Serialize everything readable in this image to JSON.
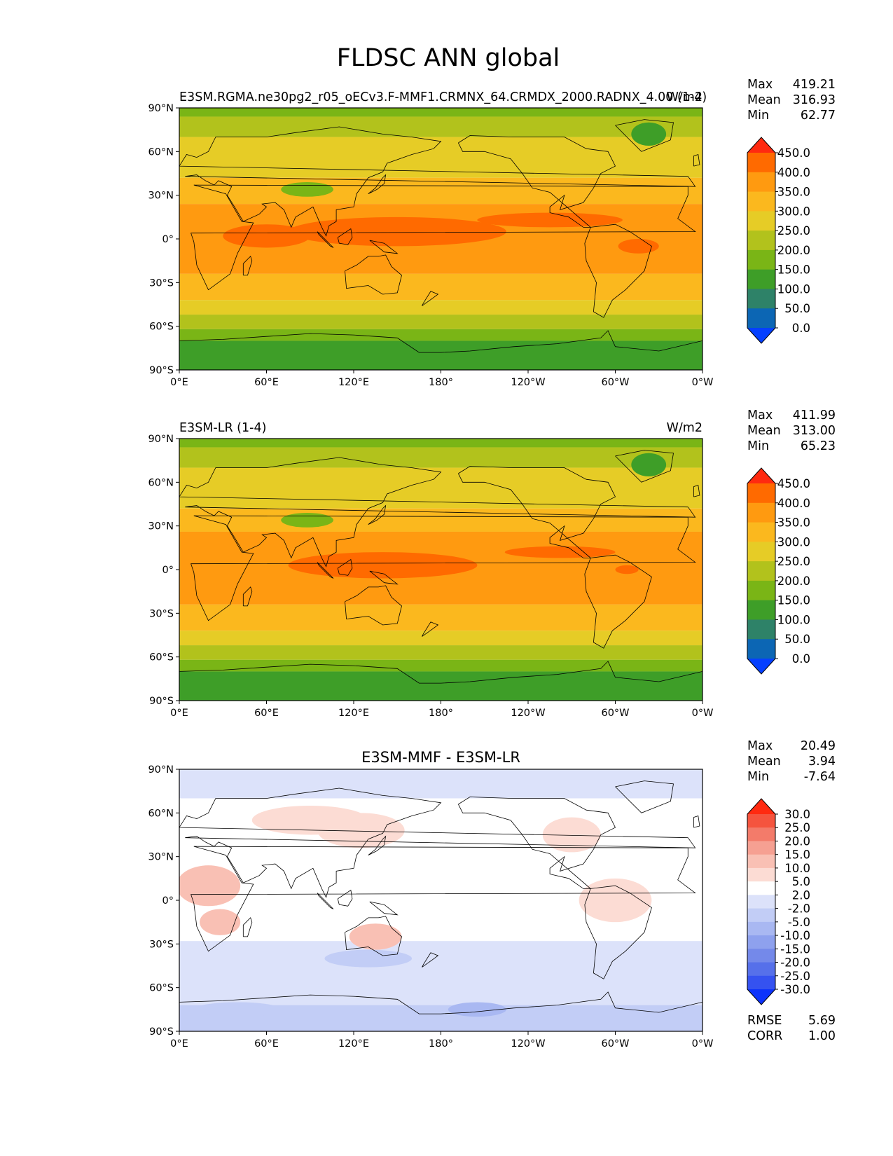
{
  "figure_title": "FLDSC ANN global",
  "chart_data": [
    {
      "type": "contour_map",
      "title_left": "E3SM.RGMA.ne30pg2_r05_oECv3.F-MMF1.CRMNX_64.CRMDX_2000.RADNX_4.00 (1-4)",
      "title_center": "",
      "units": "W/m2",
      "stats": [
        {
          "label": "Max",
          "value": "419.21"
        },
        {
          "label": "Mean",
          "value": "316.93"
        },
        {
          "label": "Min",
          "value": "62.77"
        }
      ],
      "extra_stats": [],
      "levels": [
        "450.0",
        "400.0",
        "350.0",
        "300.0",
        "250.0",
        "200.0",
        "150.0",
        "100.0",
        "50.0",
        "0.0"
      ],
      "colors": [
        "#ff2a10",
        "#ff6a00",
        "#ff9a10",
        "#fbb81e",
        "#e6cc26",
        "#b2c21c",
        "#7ab516",
        "#3e9e28",
        "#2e8268",
        "#0c66b4",
        "#0540ff"
      ],
      "xticks": [
        "0°E",
        "60°E",
        "120°E",
        "180°",
        "120°W",
        "60°W",
        "0°W"
      ],
      "yticks": [
        "90°N",
        "60°N",
        "30°N",
        "0°",
        "30°S",
        "60°S",
        "90°S"
      ],
      "lat_bands": [
        {
          "lat_top": 90,
          "lat_bottom": 84,
          "value": 160
        },
        {
          "lat_top": 84,
          "lat_bottom": 70,
          "value": 220
        },
        {
          "lat_top": 70,
          "lat_bottom": 42,
          "value": 270
        },
        {
          "lat_top": 42,
          "lat_bottom": 24,
          "value": 320
        },
        {
          "lat_top": 24,
          "lat_bottom": -24,
          "value": 370
        },
        {
          "lat_top": -24,
          "lat_bottom": -42,
          "value": 320
        },
        {
          "lat_top": -42,
          "lat_bottom": -52,
          "value": 275
        },
        {
          "lat_top": -52,
          "lat_bottom": -62,
          "value": 225
        },
        {
          "lat_top": -62,
          "lat_bottom": -70,
          "value": 170
        },
        {
          "lat_top": -70,
          "lat_bottom": -90,
          "value": 115
        }
      ],
      "features": [
        {
          "lon": 150,
          "lat": 5,
          "rx": 75,
          "ry": 10,
          "value": 410
        },
        {
          "lon": 60,
          "lat": 2,
          "rx": 30,
          "ry": 8,
          "value": 405
        },
        {
          "lon": 255,
          "lat": 13,
          "rx": 50,
          "ry": 5,
          "value": 405
        },
        {
          "lon": 316,
          "lat": -5,
          "rx": 14,
          "ry": 5,
          "value": 405
        },
        {
          "lon": 88,
          "lat": 34,
          "rx": 18,
          "ry": 5,
          "value": 175
        },
        {
          "lon": 323,
          "lat": 72,
          "rx": 12,
          "ry": 8,
          "value": 120
        }
      ]
    },
    {
      "type": "contour_map",
      "title_left": "E3SM-LR (1-4)",
      "title_center": "",
      "units": "W/m2",
      "stats": [
        {
          "label": "Max",
          "value": "411.99"
        },
        {
          "label": "Mean",
          "value": "313.00"
        },
        {
          "label": "Min",
          "value": "65.23"
        }
      ],
      "extra_stats": [],
      "levels": [
        "450.0",
        "400.0",
        "350.0",
        "300.0",
        "250.0",
        "200.0",
        "150.0",
        "100.0",
        "50.0",
        "0.0"
      ],
      "colors": [
        "#ff2a10",
        "#ff6a00",
        "#ff9a10",
        "#fbb81e",
        "#e6cc26",
        "#b2c21c",
        "#7ab516",
        "#3e9e28",
        "#2e8268",
        "#0c66b4",
        "#0540ff"
      ],
      "xticks": [
        "0°E",
        "60°E",
        "120°E",
        "180°",
        "120°W",
        "60°W",
        "0°W"
      ],
      "yticks": [
        "90°N",
        "60°N",
        "30°N",
        "0°",
        "30°S",
        "60°S",
        "90°S"
      ],
      "lat_bands": [
        {
          "lat_top": 90,
          "lat_bottom": 84,
          "value": 160
        },
        {
          "lat_top": 84,
          "lat_bottom": 70,
          "value": 215
        },
        {
          "lat_top": 70,
          "lat_bottom": 42,
          "value": 265
        },
        {
          "lat_top": 42,
          "lat_bottom": 26,
          "value": 315
        },
        {
          "lat_top": 26,
          "lat_bottom": -24,
          "value": 365
        },
        {
          "lat_top": -24,
          "lat_bottom": -42,
          "value": 320
        },
        {
          "lat_top": -42,
          "lat_bottom": -52,
          "value": 270
        },
        {
          "lat_top": -52,
          "lat_bottom": -62,
          "value": 225
        },
        {
          "lat_top": -62,
          "lat_bottom": -70,
          "value": 170
        },
        {
          "lat_top": -70,
          "lat_bottom": -90,
          "value": 115
        }
      ],
      "features": [
        {
          "lon": 140,
          "lat": 3,
          "rx": 65,
          "ry": 9,
          "value": 405
        },
        {
          "lon": 262,
          "lat": 12,
          "rx": 38,
          "ry": 4,
          "value": 405
        },
        {
          "lon": 308,
          "lat": 0,
          "rx": 8,
          "ry": 3,
          "value": 405
        },
        {
          "lon": 88,
          "lat": 34,
          "rx": 18,
          "ry": 5,
          "value": 175
        },
        {
          "lon": 323,
          "lat": 72,
          "rx": 12,
          "ry": 8,
          "value": 120
        }
      ]
    },
    {
      "type": "contour_map",
      "title_left": "",
      "title_center": "E3SM-MMF - E3SM-LR",
      "units": "",
      "stats": [
        {
          "label": "Max",
          "value": "20.49"
        },
        {
          "label": "Mean",
          "value": "3.94"
        },
        {
          "label": "Min",
          "value": "-7.64"
        }
      ],
      "extra_stats": [
        {
          "label": "RMSE",
          "value": "5.69"
        },
        {
          "label": "CORR",
          "value": "1.00"
        }
      ],
      "levels": [
        "30.0",
        "25.0",
        "20.0",
        "15.0",
        "10.0",
        "5.0",
        "2.0",
        "-2.0",
        "-5.0",
        "-10.0",
        "-15.0",
        "-20.0",
        "-25.0",
        "-30.0"
      ],
      "colors": [
        "#ff2a10",
        "#f5543e",
        "#f37b6a",
        "#f6a092",
        "#f9c0b4",
        "#fcdcd4",
        "#ffffff",
        "#dce2fa",
        "#c2cdf6",
        "#a9b8f2",
        "#8ea1ee",
        "#7489ea",
        "#5670ea",
        "#3552f0",
        "#0d33fb"
      ],
      "xticks": [
        "0°E",
        "60°E",
        "120°E",
        "180°",
        "120°W",
        "60°W",
        "0°W"
      ],
      "yticks": [
        "90°N",
        "60°N",
        "30°N",
        "0°",
        "30°S",
        "60°S",
        "90°S"
      ],
      "lat_bands": [
        {
          "lat_top": 90,
          "lat_bottom": 70,
          "value": 1
        },
        {
          "lat_top": 70,
          "lat_bottom": -28,
          "value": 3.5
        },
        {
          "lat_top": -28,
          "lat_bottom": -72,
          "value": 0.5
        },
        {
          "lat_top": -72,
          "lat_bottom": -90,
          "value": -3
        }
      ],
      "features": [
        {
          "lon": 20,
          "lat": 10,
          "rx": 22,
          "ry": 14,
          "value": 12
        },
        {
          "lon": 28,
          "lat": -15,
          "rx": 14,
          "ry": 9,
          "value": 12
        },
        {
          "lon": 90,
          "lat": 55,
          "rx": 40,
          "ry": 10,
          "value": 7
        },
        {
          "lon": 125,
          "lat": 48,
          "rx": 30,
          "ry": 12,
          "value": 7
        },
        {
          "lon": 135,
          "lat": -25,
          "rx": 18,
          "ry": 9,
          "value": 12
        },
        {
          "lon": 300,
          "lat": 0,
          "rx": 25,
          "ry": 15,
          "value": 7
        },
        {
          "lon": 270,
          "lat": 45,
          "rx": 20,
          "ry": 12,
          "value": 7
        },
        {
          "lon": 130,
          "lat": -40,
          "rx": 30,
          "ry": 6,
          "value": -3
        },
        {
          "lon": 205,
          "lat": -75,
          "rx": 20,
          "ry": 5,
          "value": -7
        },
        {
          "lon": 40,
          "lat": -75,
          "rx": 30,
          "ry": 5,
          "value": -3
        }
      ]
    }
  ]
}
